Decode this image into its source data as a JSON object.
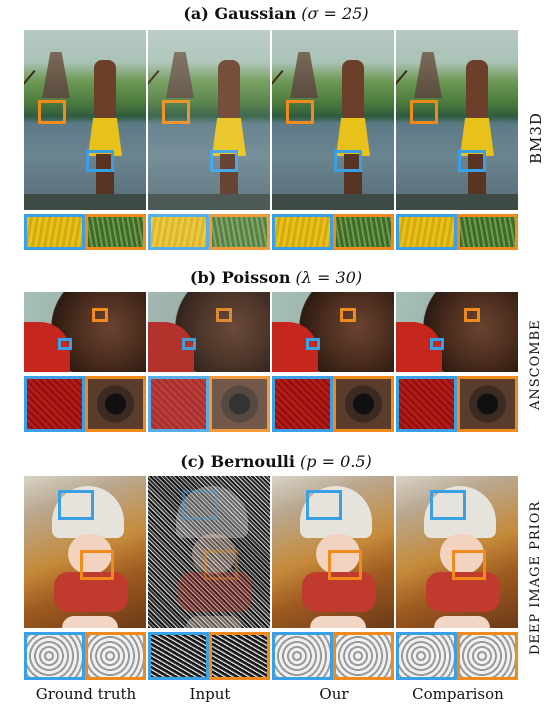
{
  "sections": [
    {
      "label": "(a) Gaussian",
      "param": "(σ = 25)",
      "method": "BM3D"
    },
    {
      "label": "(b) Poisson",
      "param": "(λ = 30)",
      "method": "ANSCOMBE"
    },
    {
      "label": "(c) Bernoulli",
      "param": "(p = 0.5)",
      "method": "DEEP IMAGE PRIOR"
    }
  ],
  "columns": [
    "Ground truth",
    "Input",
    "Our",
    "Comparison"
  ],
  "colors": {
    "blue_box": "#3aa0e6",
    "orange_box": "#f08a1c"
  }
}
